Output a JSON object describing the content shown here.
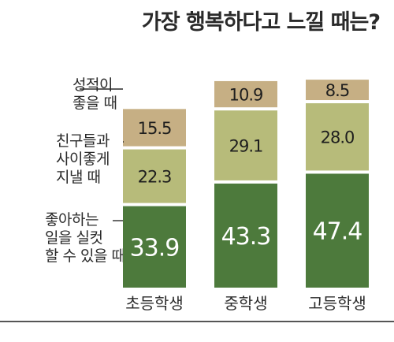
{
  "title": "가장 행복하다고 느낄 때는?",
  "chart_data": {
    "type": "bar",
    "stacked": true,
    "categories": [
      "초등학생",
      "중학생",
      "고등학생"
    ],
    "series": [
      {
        "name": "좋아하는 일을 실컷 할 수 있을 때",
        "values": [
          33.9,
          43.3,
          47.4
        ],
        "color": "#4d7a3c",
        "text_color": "#ffffff"
      },
      {
        "name": "친구들과 사이좋게 지낼 때",
        "values": [
          22.3,
          29.1,
          28.0
        ],
        "color": "#b7bb7a",
        "text_color": "#1e1e1e"
      },
      {
        "name": "성적이 좋을 때",
        "values": [
          15.5,
          10.9,
          8.5
        ],
        "color": "#c6af84",
        "text_color": "#1e1e1e"
      }
    ],
    "legend_labels": [
      "성적이\n좋을 때",
      "친구들과\n사이좋게\n지낼 때",
      "좋아하는\n일을 실컷\n할 수 있을 때"
    ],
    "value_labels": [
      [
        "33.9",
        "43.3",
        "47.4"
      ],
      [
        "22.3",
        "29.1",
        "28.0"
      ],
      [
        "15.5",
        "10.9",
        "8.5"
      ]
    ],
    "legend_placement": "left",
    "grid": false
  }
}
